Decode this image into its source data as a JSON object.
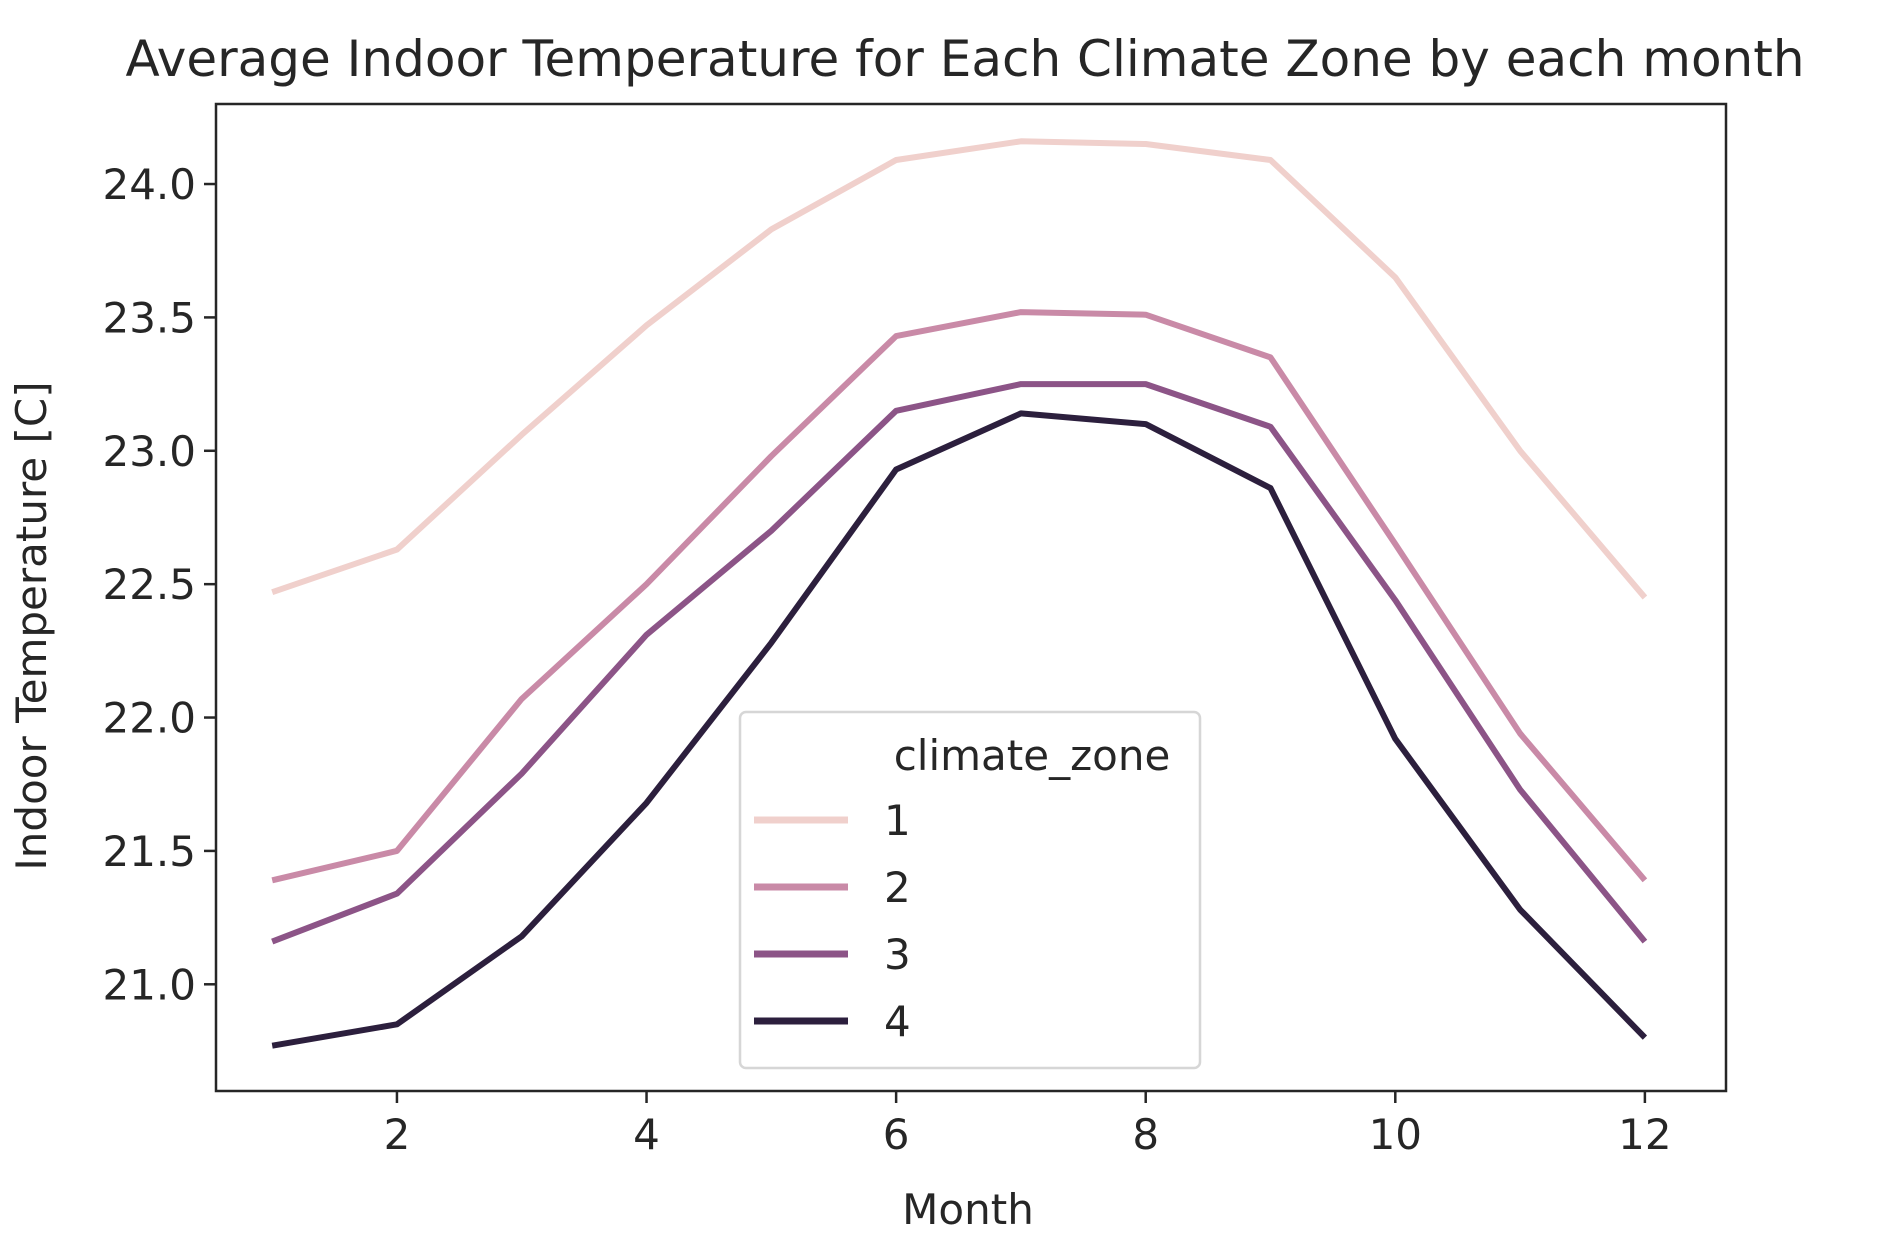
{
  "chart_data": {
    "type": "line",
    "title": "Average Indoor Temperature for Each Climate Zone by each month",
    "xlabel": "Month",
    "ylabel": "Indoor Temperature [C]",
    "xlim": [
      0.55,
      12.65
    ],
    "ylim": [
      20.6,
      24.3
    ],
    "xticks": [
      2,
      4,
      6,
      8,
      10,
      12
    ],
    "yticks": [
      21.0,
      21.5,
      22.0,
      22.5,
      23.0,
      23.5,
      24.0
    ],
    "ytick_labels": [
      "21.0",
      "21.5",
      "22.0",
      "22.5",
      "23.0",
      "23.5",
      "24.0"
    ],
    "grid": false,
    "x": [
      1,
      2,
      3,
      4,
      5,
      6,
      7,
      8,
      9,
      10,
      11,
      12
    ],
    "legend": {
      "title": "climate_zone",
      "placement": "lower-center"
    },
    "series": [
      {
        "name": "1",
        "color": "#f0d0cc",
        "values": [
          22.47,
          22.63,
          23.06,
          23.47,
          23.83,
          24.09,
          24.16,
          24.15,
          24.09,
          23.65,
          23.0,
          22.45
        ]
      },
      {
        "name": "2",
        "color": "#c98aa7",
        "values": [
          21.39,
          21.5,
          22.07,
          22.5,
          22.98,
          23.43,
          23.52,
          23.51,
          23.35,
          22.65,
          21.94,
          21.39
        ]
      },
      {
        "name": "3",
        "color": "#8c5487",
        "values": [
          21.16,
          21.34,
          21.79,
          22.31,
          22.7,
          23.15,
          23.25,
          23.25,
          23.09,
          22.44,
          21.73,
          21.16
        ]
      },
      {
        "name": "4",
        "color": "#2c1f3d",
        "values": [
          20.77,
          20.85,
          21.18,
          21.68,
          22.28,
          22.93,
          23.14,
          23.1,
          22.86,
          21.92,
          21.28,
          20.8
        ]
      }
    ]
  }
}
